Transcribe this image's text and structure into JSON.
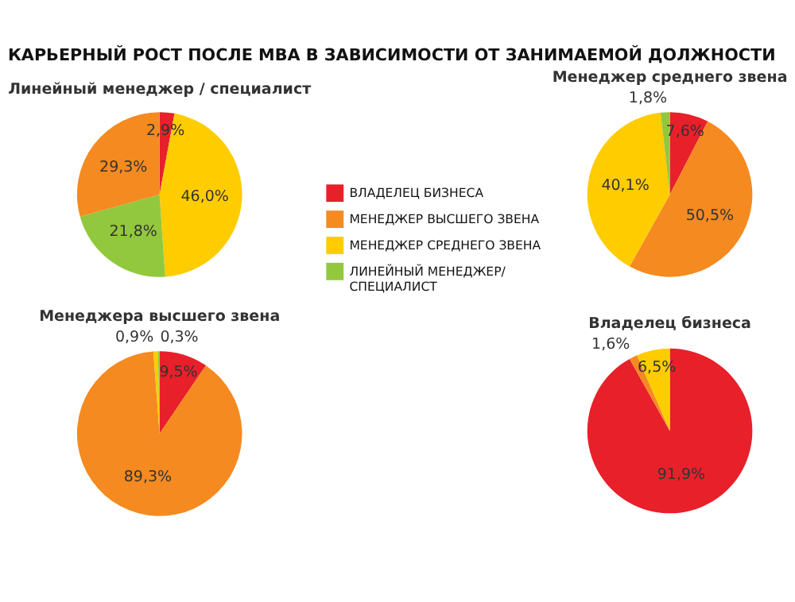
{
  "chart_data": [
    {
      "type": "other",
      "title": "КАРЬЕРНЫЙ РОСТ ПОСЛЕ MBA В ЗАВИСИМОСТИ ОТ ЗАНИМАЕМОЙ ДОЛЖНОСТИ"
    },
    {
      "type": "pie",
      "title": "Линейный менеджер / специалист",
      "categories": [
        null,
        null,
        null,
        null
      ],
      "values": [
        2.9,
        46.0,
        21.8,
        29.3
      ],
      "colors": [
        "#e8202a",
        "#ffcc00",
        "#92c83e",
        "#f58a20"
      ],
      "value_labels": [
        "2,9%",
        "46,0%",
        "21,8%",
        "29,3%"
      ]
    },
    {
      "type": "pie",
      "title": "Менеджер среднего звена",
      "categories": [
        "ВЛАДЕЛЕЦ БИЗНЕСА",
        "МЕНЕДЖЕР ВЫСШЕГО ЗВЕНА",
        "МЕНЕДЖЕР СРЕДНЕГО ЗВЕНА",
        "ЛИНЕЙНЫЙ МЕНЕДЖЕР/\nСПЕЦИАЛИСТ"
      ],
      "values": [
        7.6,
        50.5,
        40.1,
        1.8
      ],
      "colors": [
        "#e8202a",
        "#f58a20",
        "#ffcc00",
        "#92c83e"
      ],
      "value_labels": [
        "7,6%",
        "50,5%",
        "40,1%",
        "1,8%"
      ],
      "legend": "left"
    },
    {
      "type": "pie",
      "title": "Менеджера высшего звена",
      "categories": [
        null,
        null,
        null,
        null
      ],
      "values": [
        9.5,
        89.3,
        0.9,
        0.3
      ],
      "colors": [
        "#e8202a",
        "#f58a20",
        "#ffcc00",
        "#92c83e"
      ],
      "value_labels": [
        "9,5%",
        "89,3%",
        "0,9%",
        "0,3%"
      ]
    },
    {
      "type": "pie",
      "title": "Владелец бизнеса",
      "categories": [
        null,
        null,
        null
      ],
      "values": [
        91.9,
        1.6,
        6.5
      ],
      "colors": [
        "#e8202a",
        "#f58a20",
        "#ffcc00"
      ],
      "value_labels": [
        "91,9%",
        "1,6%",
        "6,5%"
      ]
    }
  ]
}
